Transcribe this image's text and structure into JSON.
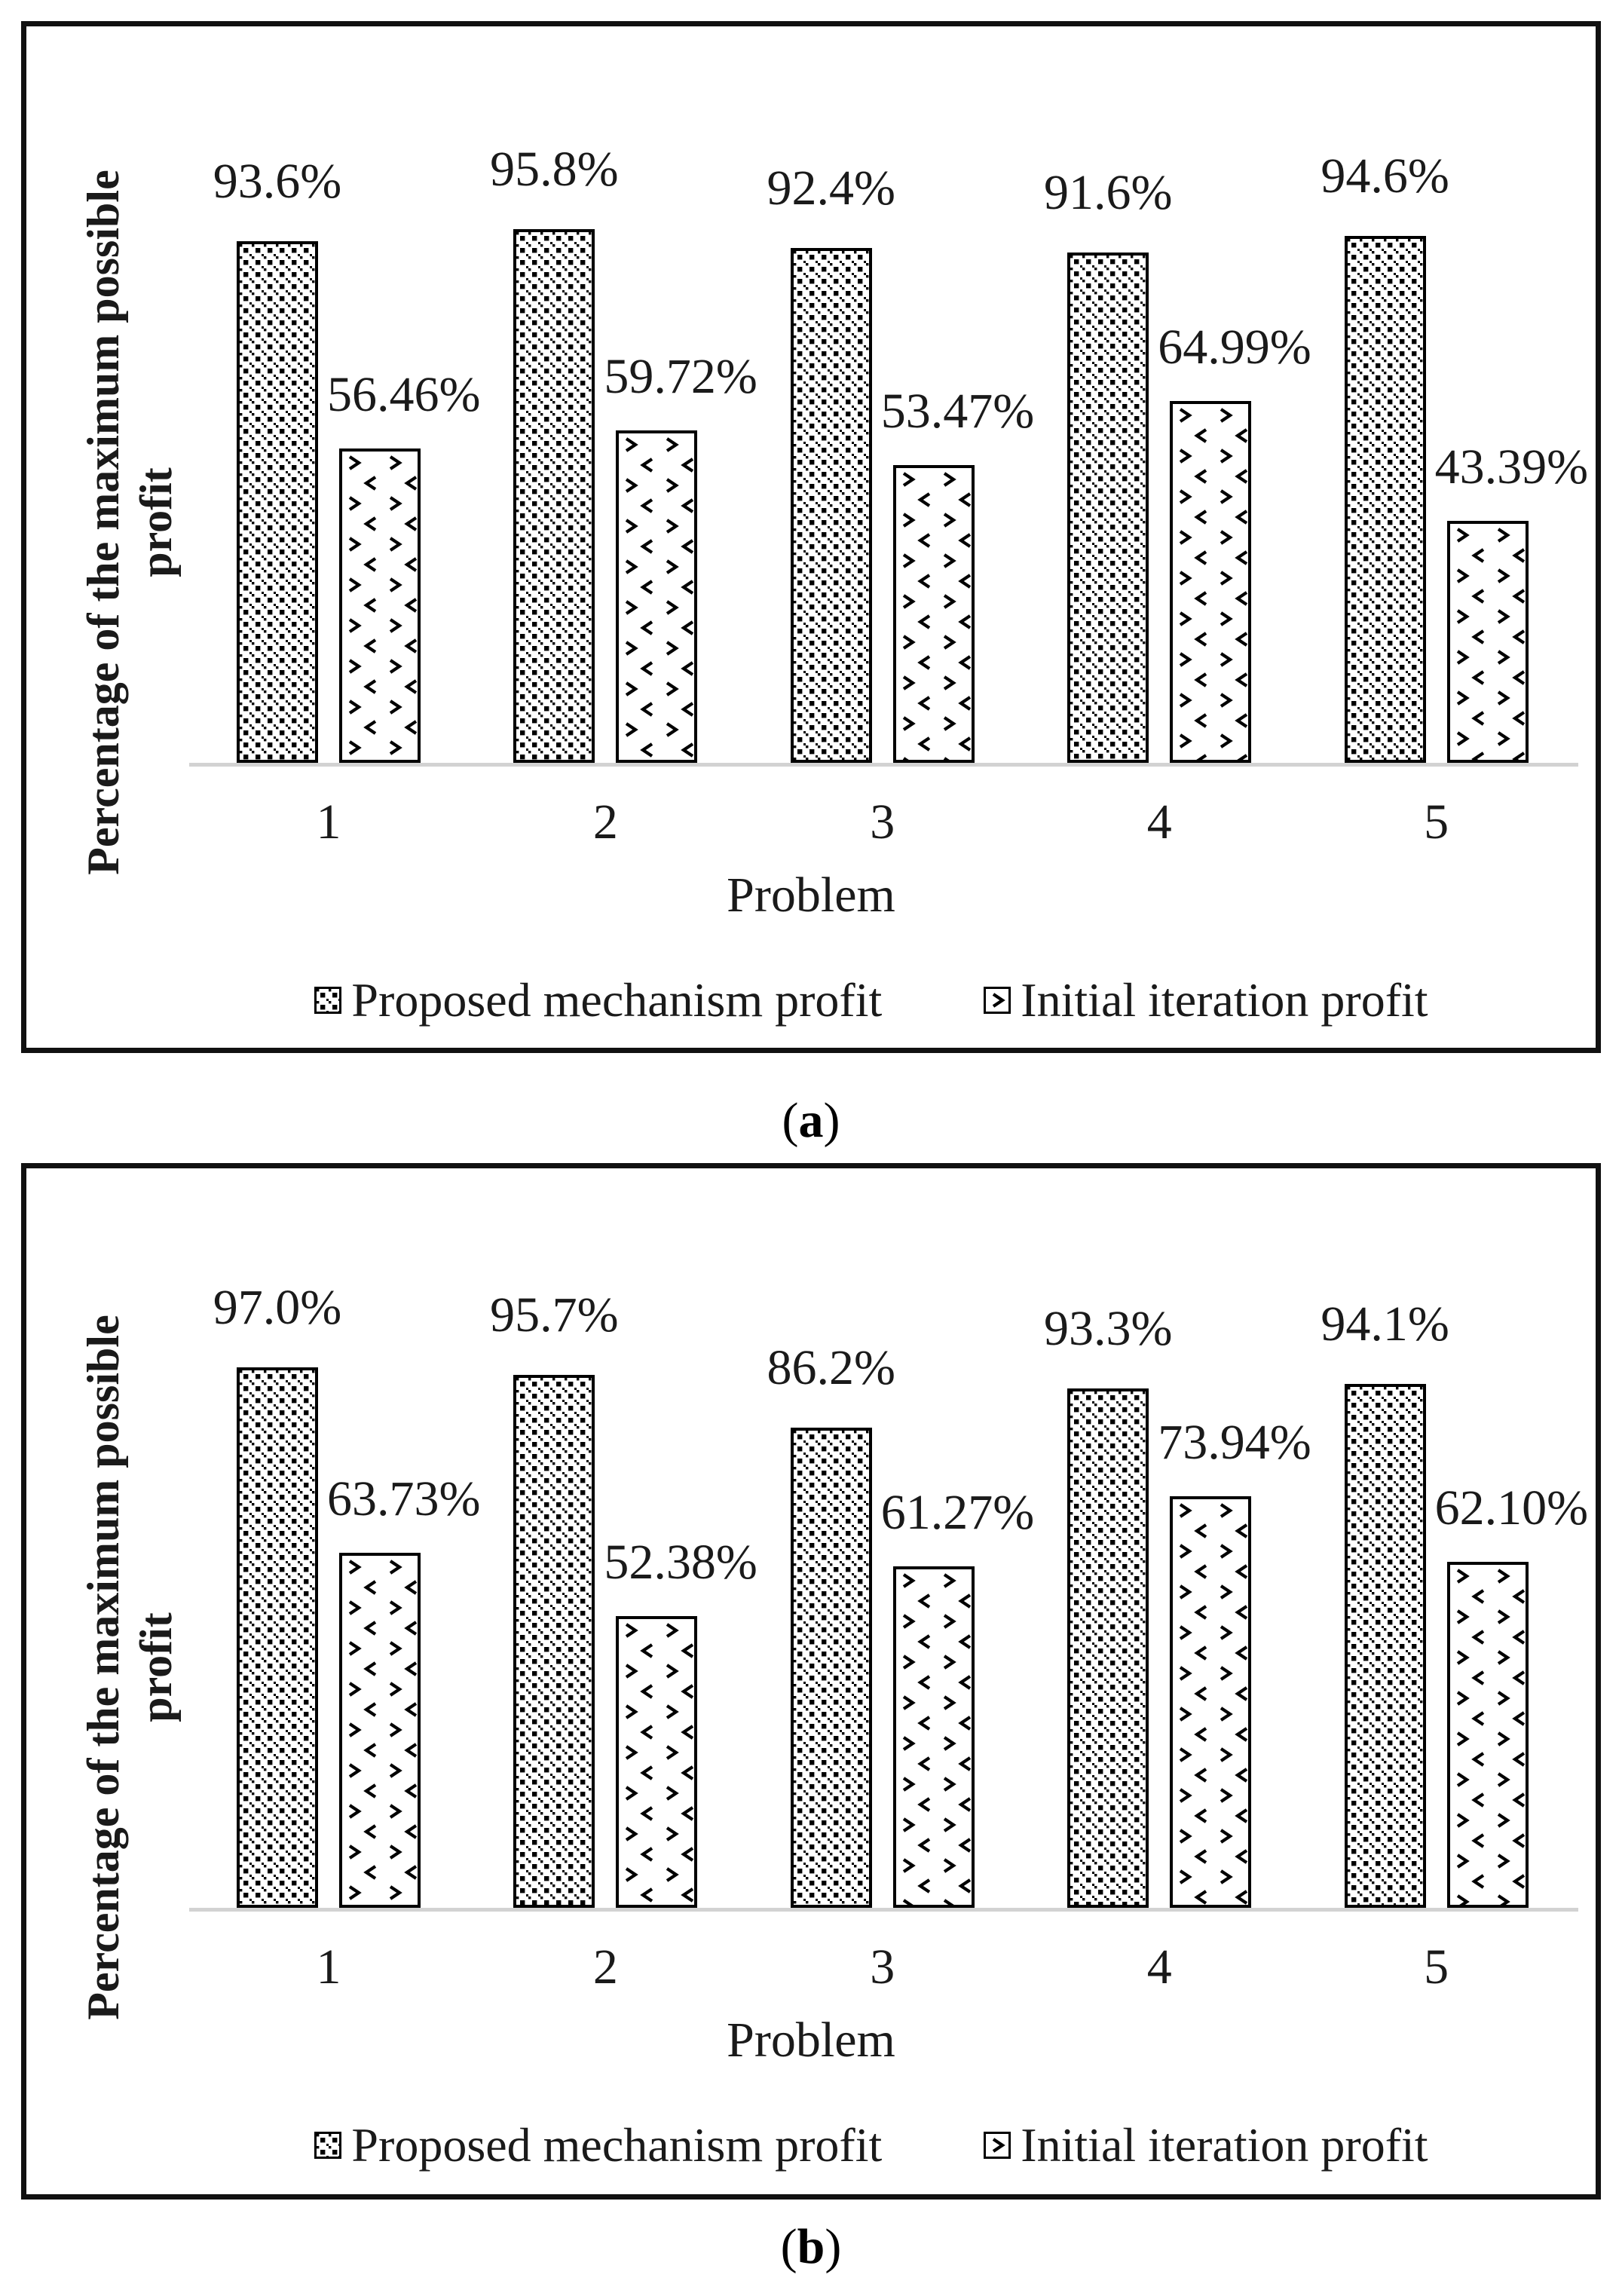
{
  "figure_type": "two stacked bar charts",
  "colors": {
    "background": "#ffffff",
    "bar_fill": "#ffffff",
    "bar_border": "#000000",
    "axis_line": "#d2d2d2",
    "text": "#1a1a1a",
    "panel_border": "#111111"
  },
  "chart_data": [
    {
      "type": "bar",
      "title": "",
      "categories": [
        "1",
        "2",
        "3",
        "4",
        "5"
      ],
      "series": [
        {
          "name": "Proposed mechanism profit",
          "pattern": "diagonal-hatch",
          "values": [
            93.6,
            95.8,
            92.4,
            91.6,
            94.6
          ],
          "data_labels": [
            "93.6%",
            "95.8%",
            "92.4%",
            "91.6%",
            "94.6%"
          ]
        },
        {
          "name": "Initial iteration profit",
          "pattern": "divot-hatch",
          "values": [
            56.46,
            59.72,
            53.47,
            64.99,
            43.39
          ],
          "data_labels": [
            "56.46%",
            "59.72%",
            "53.47%",
            "64.99%",
            "43.39%"
          ]
        }
      ],
      "xlabel": "Problem",
      "ylabel": "Percentage of the maximum possible profit",
      "ylim": [
        0,
        100
      ],
      "grid": false,
      "y_axis_ticks_visible": false,
      "legend_position": "bottom"
    },
    {
      "type": "bar",
      "title": "",
      "categories": [
        "1",
        "2",
        "3",
        "4",
        "5"
      ],
      "series": [
        {
          "name": "Proposed mechanism profit",
          "pattern": "diagonal-hatch",
          "values": [
            97.0,
            95.7,
            86.2,
            93.3,
            94.1
          ],
          "data_labels": [
            "97.0%",
            "95.7%",
            "86.2%",
            "93.3%",
            "94.1%"
          ]
        },
        {
          "name": "Initial iteration profit",
          "pattern": "divot-hatch",
          "values": [
            63.73,
            52.38,
            61.27,
            73.94,
            62.1
          ],
          "data_labels": [
            "63.73%",
            "52.38%",
            "61.27%",
            "73.94%",
            "62.10%"
          ]
        }
      ],
      "xlabel": "Problem",
      "ylabel": "Percentage of the maximum possible profit",
      "ylim": [
        0,
        100
      ],
      "grid": false,
      "y_axis_ticks_visible": false,
      "legend_position": "bottom"
    }
  ],
  "panels": [
    {
      "caption_open": "(",
      "caption_letter": "a",
      "caption_close": ")",
      "y_axis_label_line1": "Percentage of the maximum possible",
      "y_axis_label_line2": "profit",
      "x_axis_label": "Problem",
      "legend": [
        {
          "label": "Proposed mechanism profit",
          "pattern": "diagonal-hatch"
        },
        {
          "label": "Initial iteration profit",
          "pattern": "divot-hatch"
        }
      ]
    },
    {
      "caption_open": "(",
      "caption_letter": "b",
      "caption_close": ")",
      "y_axis_label_line1": "Percentage of the maximum possible",
      "y_axis_label_line2": "profit",
      "x_axis_label": "Problem",
      "legend": [
        {
          "label": "Proposed mechanism profit",
          "pattern": "diagonal-hatch"
        },
        {
          "label": "Initial iteration profit",
          "pattern": "divot-hatch"
        }
      ]
    }
  ]
}
